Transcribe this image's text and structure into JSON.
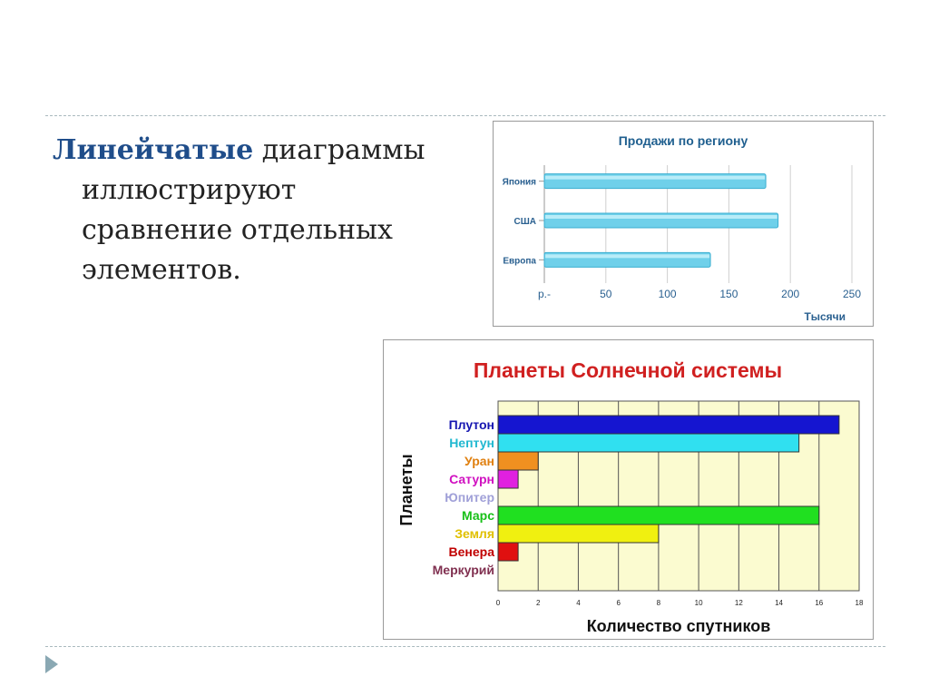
{
  "slide": {
    "text_lines": [
      {
        "highlight": "Линейчатые",
        "rest": " диаграммы"
      },
      {
        "highlight": "",
        "rest": "иллюстрируют"
      },
      {
        "highlight": "",
        "rest": "сравнение отдельных"
      },
      {
        "highlight": "",
        "rest": "элементов."
      }
    ]
  },
  "chart_data": [
    {
      "type": "bar",
      "orientation": "horizontal",
      "title": "Продажи по региону",
      "xlabel": "Тысячи",
      "ylabel": "",
      "categories": [
        "Япония",
        "США",
        "Европа"
      ],
      "values": [
        180,
        190,
        135
      ],
      "xticks": [
        "р.-",
        "50",
        "100",
        "150",
        "200",
        "250"
      ],
      "xlim": [
        0,
        250
      ],
      "grid": true,
      "colors": {
        "bar": "#6fd0ea",
        "bar_edge": "#3aaed0",
        "title": "#1f5f8f",
        "axis_text": "#2a6090"
      }
    },
    {
      "type": "bar",
      "orientation": "horizontal",
      "title": "Планеты Солнечной системы",
      "xlabel": "Количество спутников",
      "ylabel": "Планеты",
      "categories": [
        "Плутон",
        "Нептун",
        "Уран",
        "Сатурн",
        "Юпитер",
        "Марс",
        "Земля",
        "Венера",
        "Меркурий"
      ],
      "values": [
        17,
        15,
        2,
        1,
        0,
        16,
        8,
        1,
        0
      ],
      "bar_colors": [
        "#1515d0",
        "#30e0f0",
        "#f09020",
        "#e020e0",
        "#a0a0e0",
        "#20e020",
        "#f0f010",
        "#e01010",
        "#903050"
      ],
      "label_colors": [
        "#1515b0",
        "#20b8d0",
        "#e08010",
        "#d010c0",
        "#a0a0d8",
        "#18c018",
        "#e0c000",
        "#c00000",
        "#803050"
      ],
      "xticks": [
        "0",
        "2",
        "4",
        "6",
        "8",
        "10",
        "12",
        "14",
        "16",
        "18"
      ],
      "xlim": [
        0,
        18
      ],
      "grid": true,
      "colors": {
        "plot_bg": "#fbfbd0",
        "title": "#d02020",
        "grid": "#555555"
      }
    }
  ]
}
